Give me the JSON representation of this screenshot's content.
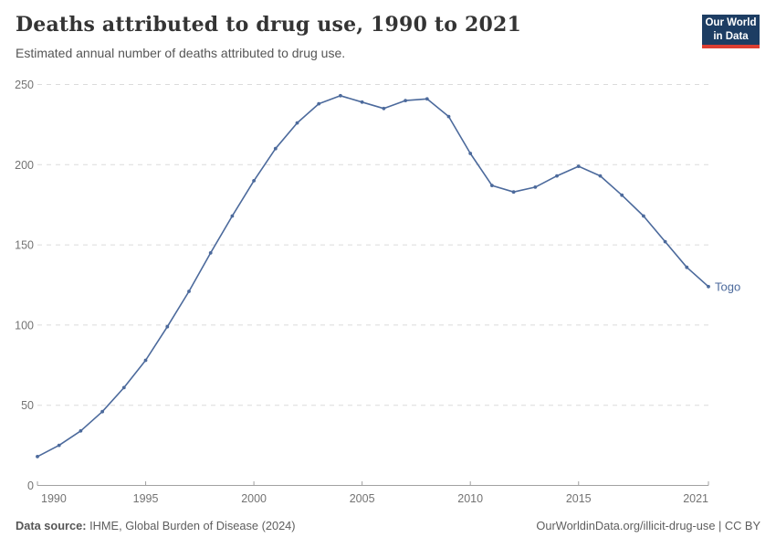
{
  "header": {
    "title": "Deaths attributed to drug use, 1990 to 2021",
    "subtitle": "Estimated annual number of deaths attributed to drug use.",
    "logo": {
      "line1": "Our World",
      "line2": "in Data"
    }
  },
  "chart_data": {
    "type": "line",
    "title": "Deaths attributed to drug use, 1990 to 2021",
    "xlabel": "",
    "ylabel": "",
    "x": [
      1990,
      1991,
      1992,
      1993,
      1994,
      1995,
      1996,
      1997,
      1998,
      1999,
      2000,
      2001,
      2002,
      2003,
      2004,
      2005,
      2006,
      2007,
      2008,
      2009,
      2010,
      2011,
      2012,
      2013,
      2014,
      2015,
      2016,
      2017,
      2018,
      2019,
      2020,
      2021
    ],
    "series": [
      {
        "name": "Togo",
        "color": "#4C6A9C",
        "values": [
          18,
          25,
          34,
          46,
          61,
          78,
          99,
          121,
          145,
          168,
          190,
          210,
          226,
          238,
          243,
          239,
          235,
          240,
          241,
          230,
          207,
          187,
          183,
          186,
          193,
          199,
          193,
          181,
          168,
          152,
          136,
          124
        ]
      }
    ],
    "ylim": [
      0,
      250
    ],
    "y_ticks": [
      0,
      50,
      100,
      150,
      200,
      250
    ],
    "x_ticks": [
      1990,
      1995,
      2000,
      2005,
      2010,
      2015,
      2021
    ],
    "grid": "horizontal-dashed",
    "legend_position": "end-of-line-label",
    "end_label": "Togo"
  },
  "footer": {
    "datasource_label": "Data source:",
    "datasource_value": " IHME, Global Burden of Disease (2024)",
    "credit": "OurWorldinData.org/illicit-drug-use | CC BY"
  },
  "colors": {
    "line": "#4C6A9C",
    "logo_bg": "#1d3d63",
    "logo_bar": "#dc3e32",
    "gridline": "#dbdbdb",
    "axis": "#a1a1a1",
    "tick_text": "#737373"
  }
}
